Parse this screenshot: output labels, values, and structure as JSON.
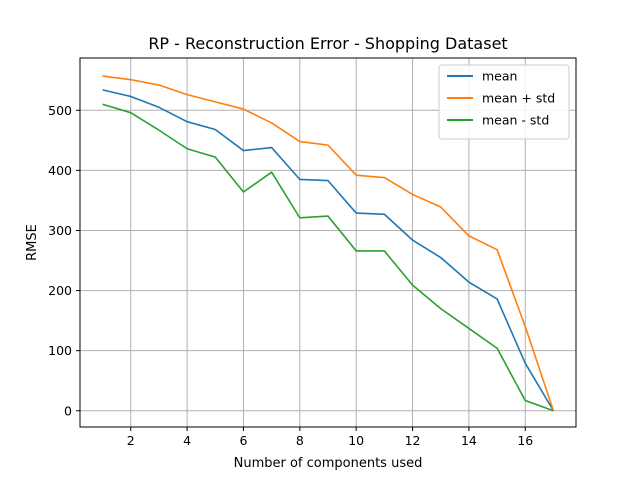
{
  "chart_data": {
    "type": "line",
    "title": "RP - Reconstruction Error - Shopping Dataset",
    "xlabel": "Number of components used",
    "ylabel": "RMSE",
    "x": [
      1,
      2,
      3,
      4,
      5,
      6,
      7,
      8,
      9,
      10,
      11,
      12,
      13,
      14,
      15,
      16,
      17
    ],
    "xlim": [
      0.2,
      17.8
    ],
    "ylim": [
      -27,
      587
    ],
    "xticks": [
      2,
      4,
      6,
      8,
      10,
      12,
      14,
      16
    ],
    "yticks": [
      0,
      100,
      200,
      300,
      400,
      500
    ],
    "grid": true,
    "legend_position": "top-right",
    "series": [
      {
        "name": "mean",
        "color": "#1f77b4",
        "values": [
          534,
          523,
          505,
          481,
          468,
          433,
          438,
          385,
          383,
          329,
          327,
          284,
          255,
          214,
          186,
          79,
          0
        ]
      },
      {
        "name": "mean + std",
        "color": "#ff7f0e",
        "values": [
          557,
          551,
          542,
          526,
          514,
          502,
          479,
          448,
          442,
          392,
          388,
          360,
          339,
          291,
          268,
          140,
          0
        ]
      },
      {
        "name": "mean - std",
        "color": "#2ca02c",
        "values": [
          510,
          496,
          467,
          436,
          422,
          364,
          397,
          321,
          324,
          266,
          266,
          209,
          170,
          137,
          104,
          17,
          0
        ]
      }
    ]
  }
}
